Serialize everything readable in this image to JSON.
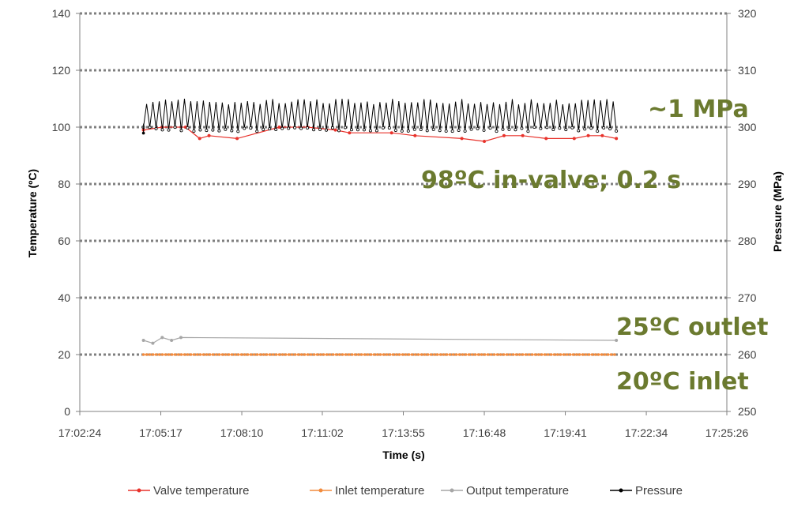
{
  "chart_data": {
    "type": "line",
    "xlabel": "Time (s)",
    "ylabel": "Temperature (ºC)",
    "y2label": "Pressure (MPa)",
    "x_tick_labels": [
      "17:02:24",
      "17:05:17",
      "17:08:10",
      "17:11:02",
      "17:13:55",
      "17:16:48",
      "17:19:41",
      "17:22:34",
      "17:25:26"
    ],
    "xlim": [
      "17:02:24",
      "17:25:26"
    ],
    "ylim": [
      0,
      140
    ],
    "y_ticks": [
      0,
      20,
      40,
      60,
      80,
      100,
      120,
      140
    ],
    "y2lim": [
      250,
      320
    ],
    "y2_ticks": [
      250,
      260,
      270,
      280,
      290,
      300,
      310,
      320
    ],
    "grid": "horizontal dotted",
    "legend_position": "bottom",
    "series": [
      {
        "name": "Valve temperature",
        "axis": "left",
        "color": "#e8322b",
        "x": [
          "17:04:40",
          "17:05:20",
          "17:06:10",
          "17:06:40",
          "17:07:00",
          "17:08:00",
          "17:09:30",
          "17:10:30",
          "17:11:30",
          "17:12:00",
          "17:13:30",
          "17:14:20",
          "17:16:00",
          "17:16:48",
          "17:17:30",
          "17:18:10",
          "17:19:00",
          "17:20:00",
          "17:20:30",
          "17:21:00",
          "17:21:30"
        ],
        "values": [
          99,
          100,
          100,
          96,
          97,
          96,
          100,
          100,
          99,
          98,
          98,
          97,
          96,
          95,
          97,
          97,
          96,
          96,
          97,
          97,
          96
        ]
      },
      {
        "name": "Inlet temperature",
        "axis": "left",
        "color": "#f28b3d",
        "x": [
          "17:04:40",
          "17:21:30"
        ],
        "values": [
          20,
          20
        ]
      },
      {
        "name": "Output temperature",
        "axis": "left",
        "color": "#a6a6a6",
        "x": [
          "17:04:40",
          "17:05:00",
          "17:05:20",
          "17:05:40",
          "17:06:00",
          "17:21:30"
        ],
        "values": [
          25,
          24,
          26,
          25,
          26,
          25
        ]
      },
      {
        "name": "Pressure",
        "axis": "right",
        "color": "#000000",
        "x": [
          "17:04:40",
          "17:21:30"
        ],
        "values": [
          302,
          302
        ],
        "range": [
          300,
          305
        ]
      }
    ],
    "annotations": [
      "~1 MPa",
      "98ºC in-valve; 0.2 s",
      "25ºC outlet",
      "20ºC inlet"
    ]
  },
  "colors": {
    "valve": "#e8322b",
    "inlet": "#f28b3d",
    "output": "#a6a6a6",
    "pressure": "#000000",
    "annotation": "#6b7a2f"
  }
}
